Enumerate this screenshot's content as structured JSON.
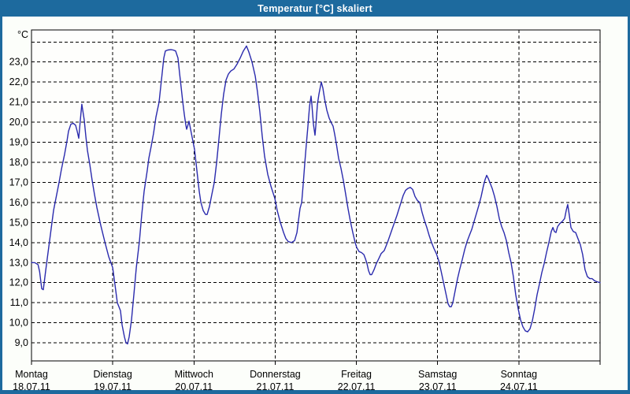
{
  "window": {
    "title": "Temperatur [°C] skaliert"
  },
  "colors": {
    "accent": "#1d6a9e",
    "title_text": "#ffffff",
    "page_bg": "#fcfefa",
    "plot_bg": "#fefefc",
    "grid": "#000000",
    "line": "#2a2aad"
  },
  "chart_data": {
    "type": "line",
    "title": "Temperatur [°C] skaliert",
    "unit_label": "°C",
    "grid": "dashed",
    "legend": "none",
    "y_axis": {
      "tick_labels": [
        "23,0",
        "22,0",
        "21,0",
        "20,0",
        "19,0",
        "18,0",
        "17,0",
        "16,0",
        "15,0",
        "14,0",
        "13,0",
        "12,0",
        "11,0",
        "10,0",
        "9,0"
      ],
      "tick_values": [
        23,
        22,
        21,
        20,
        19,
        18,
        17,
        16,
        15,
        14,
        13,
        12,
        11,
        10,
        9
      ],
      "unlabeled_top_gridline": 24,
      "ylim": [
        8.1,
        24.6
      ],
      "decimal_separator": ","
    },
    "x_axis": {
      "days": [
        {
          "name": "Montag",
          "date": "18.07.11"
        },
        {
          "name": "Dienstag",
          "date": "19.07.11"
        },
        {
          "name": "Mittwoch",
          "date": "20.07.11"
        },
        {
          "name": "Donnerstag",
          "date": "21.07.11"
        },
        {
          "name": "Freitag",
          "date": "22.07.11"
        },
        {
          "name": "Samstag",
          "date": "23.07.11"
        },
        {
          "name": "Sonntag",
          "date": "24.07.11"
        }
      ]
    },
    "series": [
      {
        "name": "Temperatur",
        "color": "#2a2aad",
        "x_unit": "days_since_monday_00h",
        "points": [
          [
            0,
            13.0
          ],
          [
            0.04,
            13.0
          ],
          [
            0.08,
            12.9
          ],
          [
            0.1,
            12.55
          ],
          [
            0.126,
            11.7
          ],
          [
            0.145,
            11.65
          ],
          [
            0.175,
            12.6
          ],
          [
            0.213,
            13.8
          ],
          [
            0.242,
            14.7
          ],
          [
            0.271,
            15.6
          ],
          [
            0.31,
            16.4
          ],
          [
            0.339,
            17.0
          ],
          [
            0.368,
            17.65
          ],
          [
            0.407,
            18.4
          ],
          [
            0.436,
            19.05
          ],
          [
            0.456,
            19.55
          ],
          [
            0.485,
            19.9
          ],
          [
            0.514,
            19.95
          ],
          [
            0.543,
            19.85
          ],
          [
            0.562,
            19.55
          ],
          [
            0.582,
            19.2
          ],
          [
            0.601,
            20.1
          ],
          [
            0.62,
            20.9
          ],
          [
            0.65,
            20.1
          ],
          [
            0.669,
            19.3
          ],
          [
            0.688,
            18.6
          ],
          [
            0.717,
            17.9
          ],
          [
            0.747,
            17.1
          ],
          [
            0.776,
            16.4
          ],
          [
            0.805,
            15.75
          ],
          [
            0.853,
            14.85
          ],
          [
            0.902,
            14.05
          ],
          [
            0.95,
            13.3
          ],
          [
            1.0,
            12.75
          ],
          [
            1.028,
            11.9
          ],
          [
            1.057,
            11.0
          ],
          [
            1.076,
            10.8
          ],
          [
            1.096,
            10.6
          ],
          [
            1.115,
            9.9
          ],
          [
            1.144,
            9.3
          ],
          [
            1.163,
            9.0
          ],
          [
            1.183,
            8.95
          ],
          [
            1.202,
            9.3
          ],
          [
            1.231,
            10.15
          ],
          [
            1.261,
            11.45
          ],
          [
            1.29,
            12.75
          ],
          [
            1.328,
            14.05
          ],
          [
            1.357,
            15.4
          ],
          [
            1.386,
            16.55
          ],
          [
            1.425,
            17.6
          ],
          [
            1.445,
            18.2
          ],
          [
            1.474,
            18.8
          ],
          [
            1.503,
            19.45
          ],
          [
            1.532,
            20.25
          ],
          [
            1.571,
            21.0
          ],
          [
            1.6,
            22.1
          ],
          [
            1.629,
            23.2
          ],
          [
            1.648,
            23.55
          ],
          [
            1.677,
            23.6
          ],
          [
            1.716,
            23.62
          ],
          [
            1.745,
            23.6
          ],
          [
            1.774,
            23.55
          ],
          [
            1.803,
            23.2
          ],
          [
            1.823,
            22.45
          ],
          [
            1.842,
            21.75
          ],
          [
            1.862,
            21.0
          ],
          [
            1.881,
            20.4
          ],
          [
            1.9,
            19.85
          ],
          [
            1.91,
            19.65
          ],
          [
            1.929,
            19.9
          ],
          [
            1.939,
            20.05
          ],
          [
            1.968,
            19.45
          ],
          [
            2.007,
            18.65
          ],
          [
            2.036,
            17.6
          ],
          [
            2.065,
            16.55
          ],
          [
            2.085,
            16.0
          ],
          [
            2.114,
            15.6
          ],
          [
            2.143,
            15.4
          ],
          [
            2.162,
            15.4
          ],
          [
            2.191,
            15.8
          ],
          [
            2.22,
            16.4
          ],
          [
            2.25,
            17.0
          ],
          [
            2.279,
            18.0
          ],
          [
            2.308,
            19.2
          ],
          [
            2.337,
            20.4
          ],
          [
            2.366,
            21.4
          ],
          [
            2.395,
            22.1
          ],
          [
            2.424,
            22.4
          ],
          [
            2.453,
            22.55
          ],
          [
            2.492,
            22.65
          ],
          [
            2.531,
            22.9
          ],
          [
            2.569,
            23.2
          ],
          [
            2.608,
            23.55
          ],
          [
            2.647,
            23.8
          ],
          [
            2.676,
            23.5
          ],
          [
            2.715,
            23.0
          ],
          [
            2.754,
            22.3
          ],
          [
            2.783,
            21.5
          ],
          [
            2.812,
            20.5
          ],
          [
            2.841,
            19.3
          ],
          [
            2.87,
            18.3
          ],
          [
            2.909,
            17.4
          ],
          [
            2.948,
            16.8
          ],
          [
            2.996,
            16.2
          ],
          [
            3.025,
            15.6
          ],
          [
            3.064,
            15.0
          ],
          [
            3.103,
            14.5
          ],
          [
            3.132,
            14.2
          ],
          [
            3.161,
            14.05
          ],
          [
            3.2,
            14.0
          ],
          [
            3.239,
            14.1
          ],
          [
            3.268,
            14.5
          ],
          [
            3.287,
            15.1
          ],
          [
            3.306,
            15.7
          ],
          [
            3.326,
            16.0
          ],
          [
            3.345,
            16.9
          ],
          [
            3.365,
            18.0
          ],
          [
            3.384,
            18.9
          ],
          [
            3.403,
            19.8
          ],
          [
            3.423,
            20.8
          ],
          [
            3.442,
            21.3
          ],
          [
            3.452,
            20.9
          ],
          [
            3.471,
            19.9
          ],
          [
            3.49,
            19.35
          ],
          [
            3.5,
            19.8
          ],
          [
            3.52,
            20.9
          ],
          [
            3.539,
            21.4
          ],
          [
            3.558,
            21.8
          ],
          [
            3.568,
            22.0
          ],
          [
            3.587,
            21.7
          ],
          [
            3.607,
            21.2
          ],
          [
            3.636,
            20.6
          ],
          [
            3.665,
            20.2
          ],
          [
            3.694,
            19.95
          ],
          [
            3.713,
            19.8
          ],
          [
            3.733,
            19.4
          ],
          [
            3.752,
            18.95
          ],
          [
            3.781,
            18.2
          ],
          [
            3.81,
            17.7
          ],
          [
            3.839,
            17.1
          ],
          [
            3.868,
            16.4
          ],
          [
            3.897,
            15.7
          ],
          [
            3.927,
            15.05
          ],
          [
            3.956,
            14.5
          ],
          [
            3.985,
            14.0
          ],
          [
            4.004,
            13.75
          ],
          [
            4.033,
            13.55
          ],
          [
            4.062,
            13.5
          ],
          [
            4.092,
            13.4
          ],
          [
            4.111,
            13.2
          ],
          [
            4.13,
            12.95
          ],
          [
            4.15,
            12.6
          ],
          [
            4.169,
            12.4
          ],
          [
            4.188,
            12.4
          ],
          [
            4.217,
            12.65
          ],
          [
            4.246,
            12.95
          ],
          [
            4.276,
            13.2
          ],
          [
            4.305,
            13.45
          ],
          [
            4.343,
            13.6
          ],
          [
            4.382,
            14.0
          ],
          [
            4.421,
            14.45
          ],
          [
            4.46,
            14.9
          ],
          [
            4.499,
            15.35
          ],
          [
            4.537,
            15.85
          ],
          [
            4.576,
            16.35
          ],
          [
            4.605,
            16.6
          ],
          [
            4.634,
            16.7
          ],
          [
            4.663,
            16.75
          ],
          [
            4.693,
            16.65
          ],
          [
            4.722,
            16.3
          ],
          [
            4.751,
            16.1
          ],
          [
            4.78,
            16.0
          ],
          [
            4.809,
            15.5
          ],
          [
            4.838,
            15.1
          ],
          [
            4.867,
            14.75
          ],
          [
            4.896,
            14.35
          ],
          [
            4.925,
            14.0
          ],
          [
            4.955,
            13.7
          ],
          [
            4.984,
            13.45
          ],
          [
            5.013,
            13.1
          ],
          [
            5.042,
            12.6
          ],
          [
            5.071,
            12.05
          ],
          [
            5.1,
            11.5
          ],
          [
            5.129,
            10.95
          ],
          [
            5.149,
            10.8
          ],
          [
            5.168,
            10.8
          ],
          [
            5.187,
            11.0
          ],
          [
            5.216,
            11.6
          ],
          [
            5.245,
            12.2
          ],
          [
            5.274,
            12.7
          ],
          [
            5.303,
            13.15
          ],
          [
            5.333,
            13.65
          ],
          [
            5.362,
            14.05
          ],
          [
            5.391,
            14.35
          ],
          [
            5.42,
            14.65
          ],
          [
            5.449,
            15.05
          ],
          [
            5.478,
            15.45
          ],
          [
            5.507,
            15.85
          ],
          [
            5.536,
            16.3
          ],
          [
            5.565,
            16.85
          ],
          [
            5.585,
            17.15
          ],
          [
            5.604,
            17.35
          ],
          [
            5.623,
            17.2
          ],
          [
            5.652,
            16.9
          ],
          [
            5.672,
            16.7
          ],
          [
            5.701,
            16.3
          ],
          [
            5.73,
            15.8
          ],
          [
            5.759,
            15.2
          ],
          [
            5.788,
            14.8
          ],
          [
            5.817,
            14.5
          ],
          [
            5.846,
            14.1
          ],
          [
            5.875,
            13.5
          ],
          [
            5.904,
            13.0
          ],
          [
            5.933,
            12.3
          ],
          [
            5.962,
            11.4
          ],
          [
            5.992,
            10.7
          ],
          [
            6.021,
            10.15
          ],
          [
            6.05,
            9.8
          ],
          [
            6.079,
            9.6
          ],
          [
            6.108,
            9.55
          ],
          [
            6.137,
            9.7
          ],
          [
            6.166,
            10.1
          ],
          [
            6.195,
            10.7
          ],
          [
            6.224,
            11.4
          ],
          [
            6.254,
            11.95
          ],
          [
            6.283,
            12.5
          ],
          [
            6.312,
            12.95
          ],
          [
            6.341,
            13.5
          ],
          [
            6.37,
            14.0
          ],
          [
            6.399,
            14.55
          ],
          [
            6.419,
            14.75
          ],
          [
            6.438,
            14.55
          ],
          [
            6.457,
            14.5
          ],
          [
            6.477,
            14.8
          ],
          [
            6.506,
            14.95
          ],
          [
            6.535,
            15.05
          ],
          [
            6.564,
            15.2
          ],
          [
            6.583,
            15.6
          ],
          [
            6.602,
            15.9
          ],
          [
            6.622,
            15.35
          ],
          [
            6.641,
            14.75
          ],
          [
            6.67,
            14.55
          ],
          [
            6.699,
            14.5
          ],
          [
            6.728,
            14.2
          ],
          [
            6.757,
            13.9
          ],
          [
            6.786,
            13.4
          ],
          [
            6.815,
            12.65
          ],
          [
            6.844,
            12.3
          ],
          [
            6.873,
            12.2
          ],
          [
            6.902,
            12.2
          ],
          [
            6.931,
            12.1
          ],
          [
            6.96,
            12.05
          ],
          [
            7.0,
            12.0
          ]
        ]
      }
    ]
  }
}
